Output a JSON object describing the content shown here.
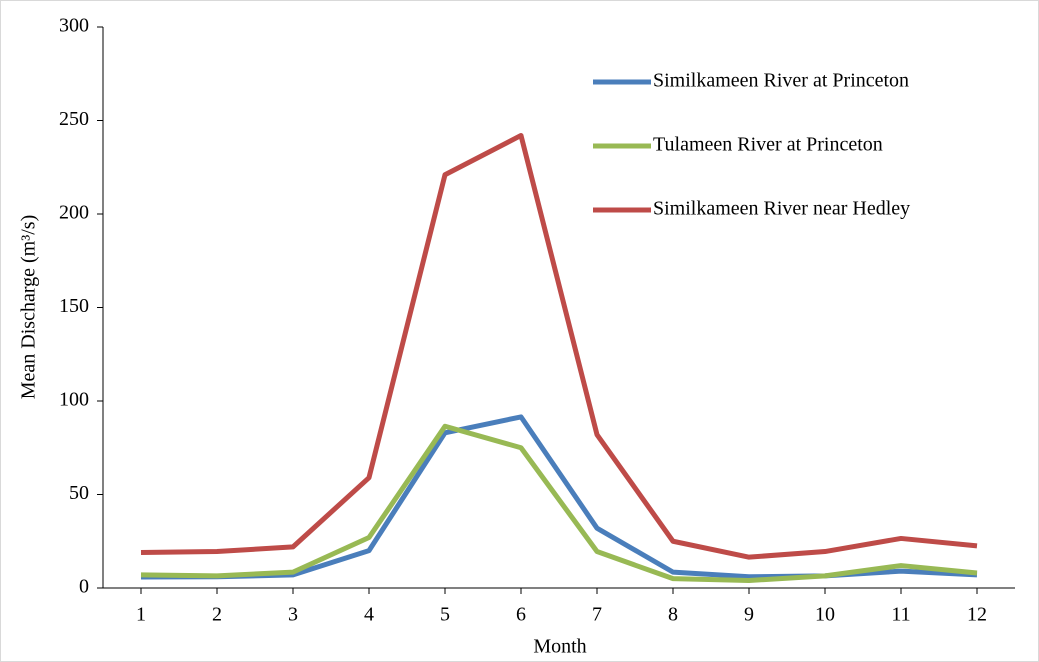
{
  "chart_data": {
    "type": "line",
    "x": [
      1,
      2,
      3,
      4,
      5,
      6,
      7,
      8,
      9,
      10,
      11,
      12
    ],
    "x_label": "Month",
    "y_label": "Mean Discharge (m³/s)",
    "xlim": [
      0.5,
      12.5
    ],
    "xticks": [
      1,
      2,
      3,
      4,
      5,
      6,
      7,
      8,
      9,
      10,
      11,
      12
    ],
    "ylim": [
      0,
      300
    ],
    "yticks": [
      0,
      50,
      100,
      150,
      200,
      250,
      300
    ],
    "legend": "upper-right",
    "series": [
      {
        "name": "Similkameen River at Princeton",
        "color": "#4a7ebb",
        "values": [
          5.9,
          6,
          7,
          20,
          83,
          91.5,
          32,
          8.5,
          6,
          6.5,
          9,
          7
        ]
      },
      {
        "name": "Tulameen River at Princeton",
        "color": "#98b954",
        "values": [
          7,
          6.5,
          8.5,
          27,
          86.5,
          75,
          19.5,
          5,
          4,
          6.5,
          12,
          8
        ]
      },
      {
        "name": "Similkameen River near Hedley",
        "color": "#be4b48",
        "values": [
          19,
          19.5,
          22,
          59,
          221,
          242,
          82,
          25,
          16.5,
          19.5,
          26.5,
          22.5
        ]
      }
    ]
  }
}
